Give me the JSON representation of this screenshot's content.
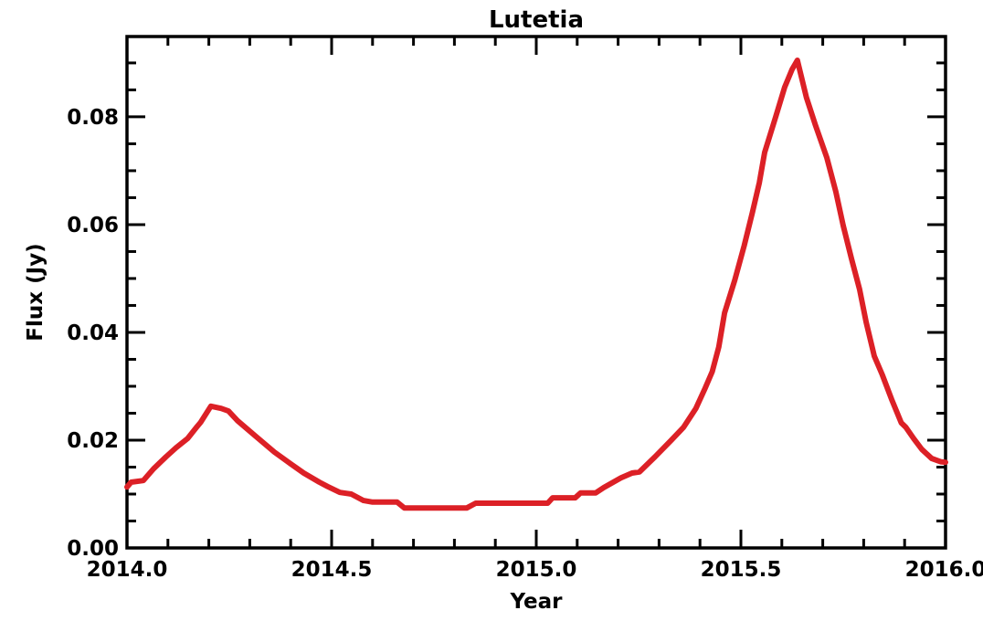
{
  "chart_data": {
    "type": "line",
    "title": "Lutetia",
    "xlabel": "Year",
    "ylabel": "Flux (Jy)",
    "xlim": [
      2014.0,
      2016.0
    ],
    "ylim": [
      0.0,
      0.0949
    ],
    "grid": false,
    "legend": "none",
    "background_color": "#ffffff",
    "axis_color": "#000000",
    "line_color": "#dc2026",
    "x_ticks": {
      "values": [
        2014.0,
        2014.5,
        2015.0,
        2015.5,
        2016.0
      ],
      "labels": [
        "2014.0",
        "2014.5",
        "2015.0",
        "2015.5",
        "2016.0"
      ],
      "minor_step": 0.1
    },
    "y_ticks": {
      "values": [
        0.0,
        0.02,
        0.04,
        0.06,
        0.08
      ],
      "labels": [
        "0.00",
        "0.02",
        "0.04",
        "0.06",
        "0.08"
      ],
      "minor_step": 0.005
    },
    "series": [
      {
        "name": "Lutetia",
        "points": [
          [
            2014.0,
            0.0113
          ],
          [
            2014.01,
            0.0122
          ],
          [
            2014.04,
            0.0125
          ],
          [
            2014.065,
            0.0147
          ],
          [
            2014.095,
            0.0169
          ],
          [
            2014.12,
            0.0186
          ],
          [
            2014.148,
            0.0203
          ],
          [
            2014.17,
            0.0224
          ],
          [
            2014.18,
            0.0233
          ],
          [
            2014.205,
            0.0263
          ],
          [
            2014.23,
            0.0259
          ],
          [
            2014.248,
            0.0254
          ],
          [
            2014.27,
            0.0236
          ],
          [
            2014.315,
            0.0207
          ],
          [
            2014.36,
            0.0178
          ],
          [
            2014.4,
            0.0156
          ],
          [
            2014.432,
            0.0139
          ],
          [
            2014.47,
            0.0122
          ],
          [
            2014.49,
            0.0114
          ],
          [
            2014.52,
            0.0103
          ],
          [
            2014.548,
            0.01
          ],
          [
            2014.578,
            0.0088
          ],
          [
            2014.6,
            0.0085
          ],
          [
            2014.66,
            0.0085
          ],
          [
            2014.678,
            0.0074
          ],
          [
            2014.83,
            0.0074
          ],
          [
            2014.852,
            0.0083
          ],
          [
            2015.028,
            0.0083
          ],
          [
            2015.04,
            0.0093
          ],
          [
            2015.095,
            0.0093
          ],
          [
            2015.108,
            0.0102
          ],
          [
            2015.145,
            0.0102
          ],
          [
            2015.165,
            0.0112
          ],
          [
            2015.207,
            0.013
          ],
          [
            2015.234,
            0.0139
          ],
          [
            2015.252,
            0.0141
          ],
          [
            2015.29,
            0.0169
          ],
          [
            2015.33,
            0.02
          ],
          [
            2015.36,
            0.0224
          ],
          [
            2015.39,
            0.0259
          ],
          [
            2015.413,
            0.0297
          ],
          [
            2015.43,
            0.0327
          ],
          [
            2015.446,
            0.0373
          ],
          [
            2015.46,
            0.0436
          ],
          [
            2015.485,
            0.0497
          ],
          [
            2015.508,
            0.0561
          ],
          [
            2015.528,
            0.0622
          ],
          [
            2015.545,
            0.0678
          ],
          [
            2015.558,
            0.0734
          ],
          [
            2015.585,
            0.08
          ],
          [
            2015.607,
            0.0855
          ],
          [
            2015.625,
            0.0888
          ],
          [
            2015.638,
            0.0905
          ],
          [
            2015.66,
            0.0836
          ],
          [
            2015.682,
            0.0785
          ],
          [
            2015.71,
            0.0724
          ],
          [
            2015.732,
            0.0661
          ],
          [
            2015.75,
            0.0598
          ],
          [
            2015.77,
            0.0537
          ],
          [
            2015.79,
            0.048
          ],
          [
            2015.806,
            0.0419
          ],
          [
            2015.826,
            0.0356
          ],
          [
            2015.845,
            0.0322
          ],
          [
            2015.868,
            0.0276
          ],
          [
            2015.892,
            0.0232
          ],
          [
            2015.903,
            0.0224
          ],
          [
            2015.922,
            0.0203
          ],
          [
            2015.942,
            0.0183
          ],
          [
            2015.966,
            0.0166
          ],
          [
            2015.988,
            0.016
          ],
          [
            2016.0,
            0.0159
          ]
        ]
      }
    ]
  }
}
